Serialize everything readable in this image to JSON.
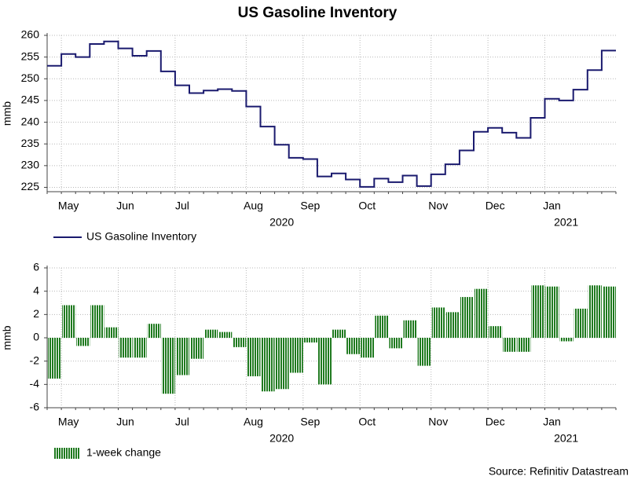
{
  "source": "Source: Refinitiv Datastream",
  "chart_data": [
    {
      "type": "line",
      "title": "US Gasoline Inventory",
      "y_label": "mmb",
      "categories": [
        null,
        "May",
        null,
        null,
        null,
        "Jun",
        null,
        null,
        null,
        "Jul",
        null,
        null,
        null,
        null,
        "Aug",
        null,
        null,
        null,
        "Sep",
        null,
        null,
        null,
        "Oct",
        null,
        null,
        null,
        null,
        "Nov",
        null,
        null,
        null,
        "Dec",
        null,
        null,
        null,
        "Jan",
        null,
        null,
        null,
        null
      ],
      "x_year_labels": [
        null,
        null,
        null,
        null,
        null,
        null,
        null,
        null,
        null,
        null,
        null,
        null,
        null,
        null,
        null,
        null,
        "2020",
        null,
        null,
        null,
        null,
        null,
        null,
        null,
        null,
        null,
        null,
        null,
        null,
        null,
        null,
        null,
        null,
        null,
        null,
        null,
        "2021",
        null,
        null,
        null
      ],
      "series": [
        {
          "name": "US Gasoline Inventory",
          "color": "#1a1a6e",
          "values": [
            253,
            255.7,
            255,
            258,
            258.6,
            257,
            255.3,
            256.4,
            251.7,
            248.5,
            246.7,
            247.3,
            247.6,
            247.2,
            243.6,
            239,
            234.8,
            231.8,
            231.5,
            227.5,
            228.2,
            226.8,
            225.1,
            227,
            226.2,
            227.7,
            225.3,
            228,
            230.3,
            233.5,
            237.8,
            238.7,
            237.6,
            236.4,
            241,
            245.4,
            245,
            247.5,
            252,
            256.5
          ]
        }
      ],
      "ylim": [
        224,
        260
      ],
      "yticks": [
        225,
        230,
        235,
        240,
        245,
        250,
        255,
        260
      ],
      "grid": true
    },
    {
      "type": "bar",
      "y_label": "mmb",
      "categories": [
        null,
        "May",
        null,
        null,
        null,
        "Jun",
        null,
        null,
        null,
        "Jul",
        null,
        null,
        null,
        null,
        "Aug",
        null,
        null,
        null,
        "Sep",
        null,
        null,
        null,
        "Oct",
        null,
        null,
        null,
        null,
        "Nov",
        null,
        null,
        null,
        "Dec",
        null,
        null,
        null,
        "Jan",
        null,
        null,
        null,
        null
      ],
      "x_year_labels": [
        null,
        null,
        null,
        null,
        null,
        null,
        null,
        null,
        null,
        null,
        null,
        null,
        null,
        null,
        null,
        null,
        "2020",
        null,
        null,
        null,
        null,
        null,
        null,
        null,
        null,
        null,
        null,
        null,
        null,
        null,
        null,
        null,
        null,
        null,
        null,
        null,
        "2021",
        null,
        null,
        null
      ],
      "series": [
        {
          "name": "1-week change",
          "color": "#1f7a1f",
          "values": [
            -3.5,
            2.8,
            -0.7,
            2.8,
            0.9,
            -1.7,
            -1.7,
            1.2,
            -4.8,
            -3.2,
            -1.8,
            0.7,
            0.5,
            -0.8,
            -3.3,
            -4.6,
            -4.4,
            -3.0,
            -0.4,
            -4.0,
            0.7,
            -1.4,
            -1.7,
            1.9,
            -0.9,
            1.5,
            -2.4,
            2.6,
            2.2,
            3.5,
            4.2,
            1.0,
            -1.2,
            -1.2,
            4.5,
            4.4,
            -0.3,
            2.5,
            4.5,
            4.4
          ]
        }
      ],
      "ylim": [
        -6,
        6
      ],
      "yticks": [
        -6,
        -4,
        -2,
        0,
        2,
        4,
        6
      ],
      "grid": true
    }
  ]
}
